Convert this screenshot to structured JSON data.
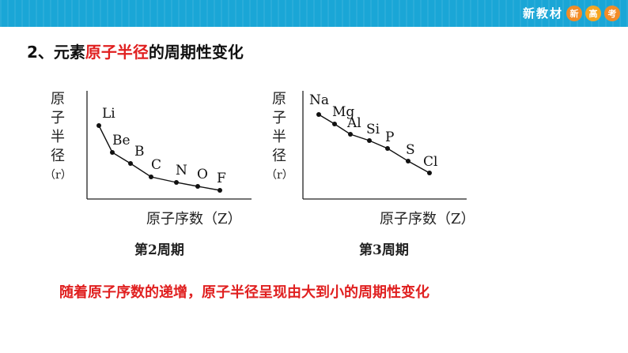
{
  "header": {
    "brand_text": "新教材",
    "badges": [
      "新",
      "高",
      "考"
    ],
    "bar_color": "#1aa6d6"
  },
  "heading": {
    "number": "2、",
    "pre": "元素",
    "highlight": "原子半径",
    "post": "的周期性变化"
  },
  "chart_data": [
    {
      "type": "line",
      "ylabel": "原子半径（r）",
      "xlabel": "原子序数（Z）",
      "caption": "第2周期",
      "points": [
        "Li",
        "Be",
        "B",
        "C",
        "N",
        "O",
        "F"
      ],
      "trend": "decreasing"
    },
    {
      "type": "line",
      "ylabel": "原子半径（r）",
      "xlabel": "原子序数（Z）",
      "caption": "第3周期",
      "points": [
        "Na",
        "Mg",
        "Al",
        "Si",
        "P",
        "S",
        "Cl"
      ],
      "trend": "decreasing"
    }
  ],
  "conclusion": "随着原子序数的递增，原子半径呈现由大到小的周期性变化",
  "colors": {
    "highlight": "#e02020",
    "text": "#111111"
  }
}
